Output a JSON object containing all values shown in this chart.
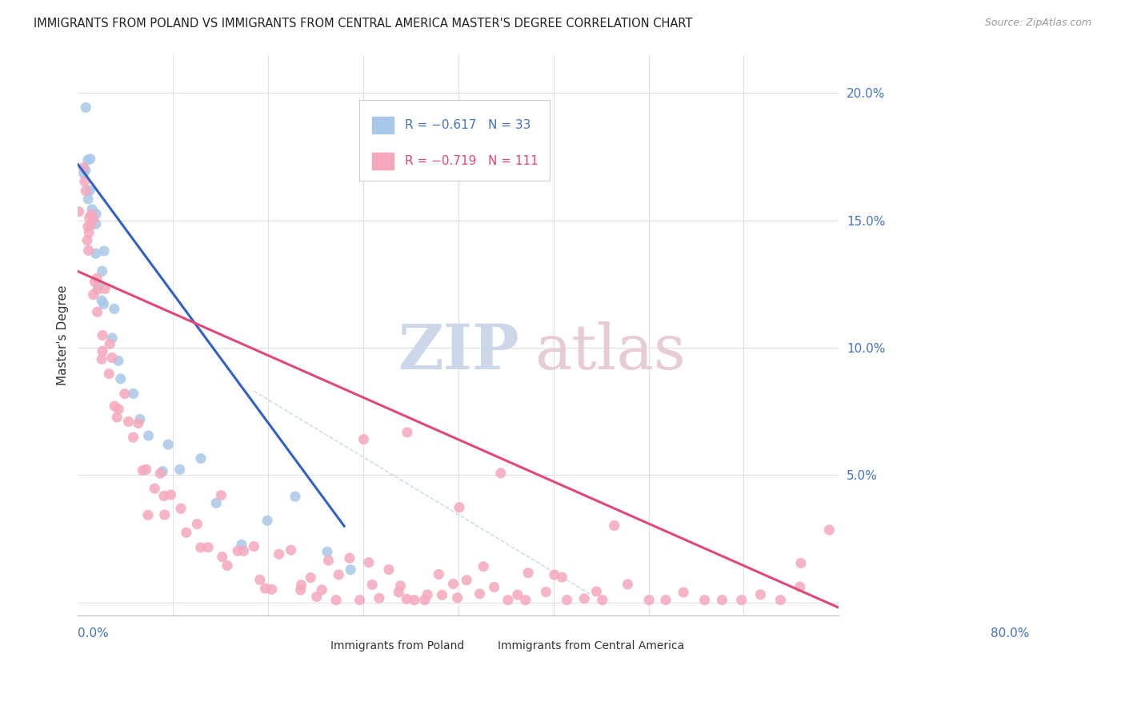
{
  "title": "IMMIGRANTS FROM POLAND VS IMMIGRANTS FROM CENTRAL AMERICA MASTER'S DEGREE CORRELATION CHART",
  "source": "Source: ZipAtlas.com",
  "ylabel": "Master's Degree",
  "yticks": [
    0.0,
    0.05,
    0.1,
    0.15,
    0.2
  ],
  "ytick_labels": [
    "",
    "5.0%",
    "10.0%",
    "15.0%",
    "20.0%"
  ],
  "xlim": [
    0.0,
    0.8
  ],
  "ylim": [
    -0.005,
    0.215
  ],
  "legend_r1": "R = −0.617",
  "legend_n1": "N = 33",
  "legend_r2": "R = −0.719",
  "legend_n2": "N = 111",
  "blue_color": "#a8c8e8",
  "pink_color": "#f5a8bc",
  "blue_line_color": "#3060c8",
  "pink_line_color": "#e04878",
  "blue_line_x": [
    0.0,
    0.28
  ],
  "blue_line_y": [
    0.172,
    0.03
  ],
  "pink_line_x": [
    0.0,
    0.8
  ],
  "pink_line_y": [
    0.13,
    -0.002
  ],
  "dash_line_x": [
    0.185,
    0.54
  ],
  "dash_line_y": [
    0.083,
    0.003
  ],
  "background_color": "#ffffff",
  "grid_color": "#e0e0e0",
  "poland_x": [
    0.005,
    0.007,
    0.008,
    0.01,
    0.012,
    0.013,
    0.015,
    0.016,
    0.017,
    0.018,
    0.02,
    0.022,
    0.024,
    0.026,
    0.028,
    0.03,
    0.035,
    0.038,
    0.042,
    0.048,
    0.055,
    0.065,
    0.075,
    0.085,
    0.095,
    0.11,
    0.13,
    0.15,
    0.17,
    0.2,
    0.23,
    0.26,
    0.29
  ],
  "poland_y": [
    0.19,
    0.185,
    0.175,
    0.168,
    0.162,
    0.16,
    0.157,
    0.155,
    0.15,
    0.148,
    0.143,
    0.138,
    0.133,
    0.127,
    0.12,
    0.115,
    0.108,
    0.1,
    0.093,
    0.087,
    0.08,
    0.073,
    0.068,
    0.063,
    0.058,
    0.053,
    0.047,
    0.042,
    0.038,
    0.033,
    0.028,
    0.023,
    0.02
  ],
  "ca_x": [
    0.003,
    0.005,
    0.006,
    0.007,
    0.008,
    0.009,
    0.01,
    0.011,
    0.012,
    0.013,
    0.014,
    0.015,
    0.016,
    0.017,
    0.018,
    0.019,
    0.02,
    0.022,
    0.024,
    0.026,
    0.028,
    0.03,
    0.033,
    0.036,
    0.039,
    0.042,
    0.046,
    0.05,
    0.054,
    0.058,
    0.062,
    0.066,
    0.07,
    0.075,
    0.08,
    0.085,
    0.09,
    0.095,
    0.1,
    0.108,
    0.115,
    0.122,
    0.13,
    0.138,
    0.145,
    0.152,
    0.16,
    0.168,
    0.175,
    0.183,
    0.19,
    0.198,
    0.205,
    0.213,
    0.22,
    0.228,
    0.235,
    0.243,
    0.25,
    0.258,
    0.265,
    0.273,
    0.28,
    0.288,
    0.295,
    0.303,
    0.31,
    0.318,
    0.325,
    0.333,
    0.34,
    0.348,
    0.355,
    0.363,
    0.37,
    0.378,
    0.385,
    0.393,
    0.4,
    0.41,
    0.42,
    0.43,
    0.44,
    0.45,
    0.46,
    0.47,
    0.48,
    0.49,
    0.5,
    0.51,
    0.52,
    0.53,
    0.54,
    0.55,
    0.56,
    0.58,
    0.6,
    0.62,
    0.64,
    0.66,
    0.68,
    0.7,
    0.72,
    0.74,
    0.76,
    0.3,
    0.35,
    0.4,
    0.45,
    0.76,
    0.79
  ],
  "ca_y": [
    0.172,
    0.168,
    0.162,
    0.158,
    0.155,
    0.152,
    0.15,
    0.147,
    0.144,
    0.141,
    0.138,
    0.135,
    0.132,
    0.129,
    0.127,
    0.124,
    0.121,
    0.116,
    0.111,
    0.107,
    0.103,
    0.099,
    0.095,
    0.091,
    0.087,
    0.083,
    0.078,
    0.074,
    0.07,
    0.067,
    0.063,
    0.059,
    0.056,
    0.052,
    0.048,
    0.045,
    0.042,
    0.039,
    0.036,
    0.034,
    0.031,
    0.029,
    0.027,
    0.025,
    0.023,
    0.022,
    0.02,
    0.019,
    0.018,
    0.016,
    0.015,
    0.014,
    0.013,
    0.013,
    0.012,
    0.011,
    0.011,
    0.01,
    0.01,
    0.009,
    0.009,
    0.008,
    0.008,
    0.008,
    0.007,
    0.007,
    0.007,
    0.006,
    0.006,
    0.006,
    0.006,
    0.006,
    0.005,
    0.005,
    0.005,
    0.005,
    0.005,
    0.005,
    0.005,
    0.005,
    0.004,
    0.004,
    0.004,
    0.004,
    0.004,
    0.004,
    0.004,
    0.004,
    0.004,
    0.004,
    0.004,
    0.004,
    0.004,
    0.004,
    0.003,
    0.003,
    0.003,
    0.003,
    0.003,
    0.003,
    0.003,
    0.003,
    0.003,
    0.003,
    0.003,
    0.065,
    0.058,
    0.052,
    0.046,
    0.022,
    0.036
  ]
}
